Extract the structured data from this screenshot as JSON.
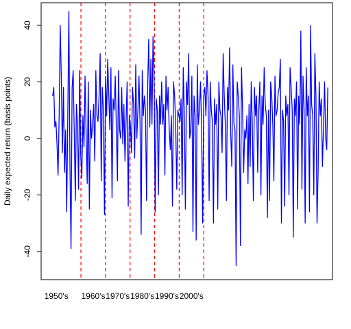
{
  "chart_data": {
    "type": "line",
    "title": "",
    "xlabel": "",
    "ylabel": "Daily expected return (basis points)",
    "ylim": [
      -50,
      48
    ],
    "yticks": [
      -40,
      -20,
      0,
      20,
      40
    ],
    "x_start": 1953.75,
    "x_end": 2009.75,
    "decades": [
      "1950's",
      "1960's",
      "1970's",
      "1980's",
      "1990's",
      "2000's"
    ],
    "vlines": [
      1959.5,
      1964.5,
      1969.5,
      1974.5,
      1979.5,
      1984.5
    ],
    "grid": false,
    "legend": "none",
    "colors": {
      "series": "#0000ff",
      "vline": "#ff0000",
      "axis": "#000000"
    },
    "series": [
      {
        "values": [
          15,
          18,
          4,
          6,
          -2,
          -13,
          8,
          40,
          22,
          -5,
          18,
          -12,
          3,
          -26,
          8,
          45,
          -10,
          -39,
          18,
          24,
          2,
          -22,
          12,
          5,
          -18,
          24,
          -6,
          -14,
          8,
          -3,
          22,
          1,
          -16,
          20,
          -25,
          10,
          0,
          5,
          12,
          -8,
          24,
          8,
          6,
          15,
          30,
          -15,
          18,
          10,
          -27,
          22,
          8,
          28,
          15,
          3,
          25,
          -21,
          14,
          10,
          22,
          4,
          -15,
          24,
          3,
          0,
          18,
          -2,
          12,
          -8,
          6,
          20,
          -24,
          8,
          5,
          -5,
          18,
          12,
          -7,
          26,
          0,
          10,
          22,
          5,
          -34,
          24,
          8,
          15,
          10,
          -22,
          18,
          35,
          4,
          28,
          5,
          36,
          22,
          -26,
          14,
          10,
          -20,
          15,
          5,
          20,
          5,
          12,
          -13,
          22,
          10,
          18,
          3,
          -4,
          8,
          -24,
          20,
          15,
          5,
          -18,
          10,
          8,
          6,
          14,
          -20,
          25,
          8,
          -25,
          20,
          12,
          30,
          0,
          3,
          22,
          -33,
          15,
          8,
          -36,
          26,
          5,
          10,
          20,
          4,
          -30,
          15,
          18,
          8,
          24,
          15,
          -22,
          20,
          10,
          6,
          -30,
          14,
          5,
          12,
          -25,
          20,
          10,
          8,
          -5,
          30,
          15,
          5,
          -22,
          18,
          10,
          32,
          2,
          -10,
          26,
          5,
          3,
          -45,
          20,
          15,
          8,
          -38,
          25,
          10,
          -12,
          3,
          0,
          8,
          -16,
          12,
          -10,
          20,
          5,
          -22,
          18,
          8,
          15,
          -12,
          10,
          20,
          -20,
          15,
          5,
          25,
          12,
          8,
          -28,
          10,
          -22,
          20,
          15,
          5,
          -15,
          22,
          8,
          10,
          16,
          18,
          28,
          -30,
          10,
          6,
          -24,
          15,
          8,
          12,
          -20,
          25,
          18,
          10,
          -35,
          14,
          8,
          20,
          -25,
          15,
          5,
          38,
          -18,
          22,
          10,
          -30,
          25,
          8,
          15,
          -26,
          40,
          12,
          8,
          -20,
          30,
          15,
          -30,
          -12,
          20,
          8,
          14,
          -10,
          4,
          20,
          0,
          -4,
          18
        ]
      }
    ]
  }
}
